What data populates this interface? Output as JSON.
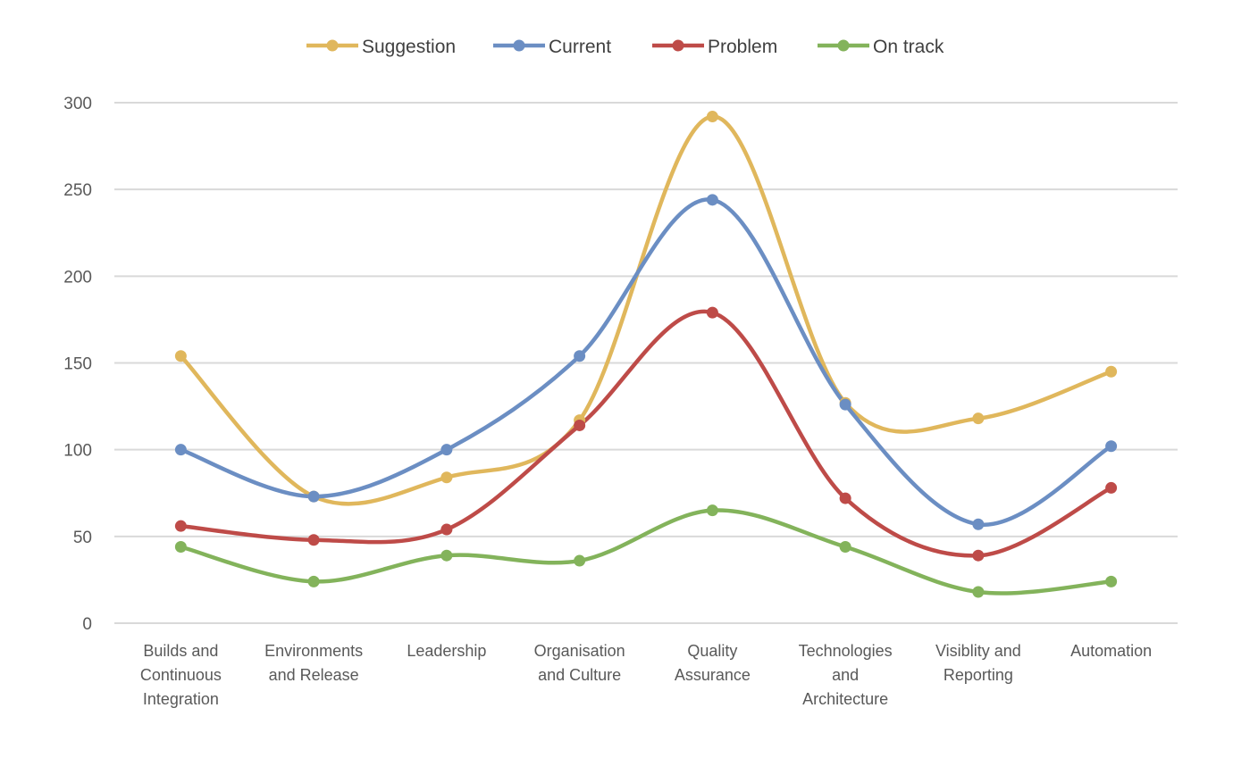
{
  "chart_data": {
    "type": "line",
    "title": "",
    "xlabel": "",
    "ylabel": "",
    "categories": [
      [
        "Builds and",
        "Continuous",
        "Integration"
      ],
      [
        "Environments",
        "and Release"
      ],
      [
        "Leadership"
      ],
      [
        "Organisation",
        "and Culture"
      ],
      [
        "Quality",
        "Assurance"
      ],
      [
        "Technologies",
        "and",
        "Architecture"
      ],
      [
        "Visiblity and",
        "Reporting"
      ],
      [
        "Automation"
      ]
    ],
    "ylim": [
      0,
      300
    ],
    "yticks": [
      0,
      50,
      100,
      150,
      200,
      250,
      300
    ],
    "grid": true,
    "smooth": true,
    "legend_position": "top",
    "series": [
      {
        "name": "Suggestion",
        "color": "#E0B75C",
        "values": [
          154,
          73,
          84,
          117,
          292,
          127,
          118,
          145
        ]
      },
      {
        "name": "Current",
        "color": "#6B8EC3",
        "values": [
          100,
          73,
          100,
          154,
          244,
          126,
          57,
          102
        ]
      },
      {
        "name": "Problem",
        "color": "#BE4B48",
        "values": [
          56,
          48,
          54,
          114,
          179,
          72,
          39,
          78
        ]
      },
      {
        "name": "On track",
        "color": "#83B35B",
        "values": [
          44,
          24,
          39,
          36,
          65,
          44,
          18,
          24
        ]
      }
    ]
  }
}
